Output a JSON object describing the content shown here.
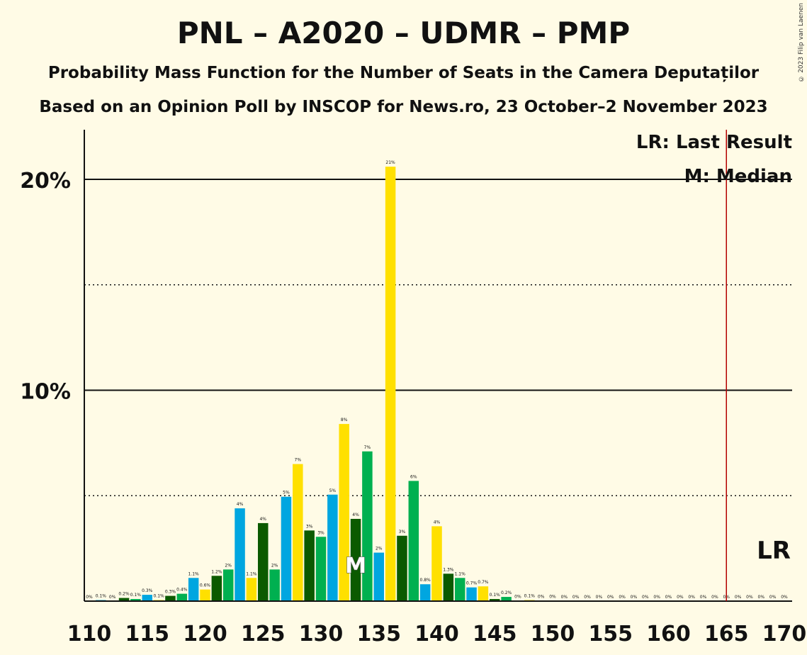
{
  "title": "PNL – A2020 – UDMR – PMP",
  "subtitle1": "Probability Mass Function for the Number of Seats in the Camera Deputaților",
  "subtitle2": "Based on an Opinion Poll by INSCOP for News.ro, 23 October–2 November 2023",
  "copyright": "© 2023 Filip van Laenen",
  "legend": {
    "last_result": "LR: Last Result",
    "median": "M: Median"
  },
  "lr_label": "LR",
  "median_label": "M",
  "colors": {
    "background": "#FFFBE6",
    "palette": [
      "#00B050",
      "#00A6E0",
      "#FFE000",
      "#0B5A00"
    ],
    "last_result_line": "#B30000"
  },
  "chart_data": {
    "type": "bar",
    "xlabel": "",
    "ylabel": "",
    "x_tick_labels": [
      "110",
      "115",
      "120",
      "125",
      "130",
      "135",
      "140",
      "145",
      "150",
      "155",
      "160",
      "165",
      "170"
    ],
    "y_tick_labels": [
      "10%",
      "20%"
    ],
    "ylim": [
      0,
      22.5
    ],
    "xlim": [
      110,
      170
    ],
    "solid_gridlines": [
      10,
      20
    ],
    "dotted_gridlines": [
      5,
      15
    ],
    "last_result": 165,
    "median": 133,
    "seats": [
      110,
      111,
      112,
      113,
      114,
      115,
      116,
      117,
      118,
      119,
      120,
      121,
      122,
      123,
      124,
      125,
      126,
      127,
      128,
      129,
      130,
      131,
      132,
      133,
      134,
      135,
      136,
      137,
      138,
      139,
      140,
      141,
      142,
      143,
      144,
      145,
      146,
      147,
      148,
      149,
      150,
      151,
      152,
      153,
      154,
      155,
      156,
      157,
      158,
      159,
      160,
      161,
      162,
      163,
      164,
      165,
      166,
      167,
      168,
      169,
      170
    ],
    "values": [
      0,
      0.05,
      0,
      0.15,
      0.1,
      0.3,
      0.05,
      0.25,
      0.35,
      1.1,
      0.55,
      1.2,
      1.5,
      4.4,
      1.1,
      3.7,
      1.5,
      4.95,
      6.5,
      3.35,
      3.05,
      5.05,
      8.4,
      3.9,
      7.1,
      2.3,
      20.6,
      3.1,
      5.7,
      0.8,
      3.55,
      1.3,
      1.1,
      0.65,
      0.7,
      0.1,
      0.2,
      0.02,
      0.05,
      0.02,
      0.01,
      0,
      0,
      0,
      0,
      0,
      0,
      0,
      0,
      0,
      0,
      0,
      0,
      0,
      0,
      0,
      0,
      0,
      0,
      0,
      0
    ],
    "labels": [
      "0%",
      "0.1%",
      "0%",
      "0.2%",
      "0.1%",
      "0.3%",
      "0.1%",
      "0.3%",
      "0.4%",
      "1.1%",
      "0.6%",
      "1.2%",
      "2%",
      "4%",
      "1.1%",
      "4%",
      "2%",
      "5%",
      "7%",
      "3%",
      "3%",
      "5%",
      "8%",
      "4%",
      "7%",
      "2%",
      "21%",
      "3%",
      "6%",
      "0.8%",
      "4%",
      "1.3%",
      "1.1%",
      "0.7%",
      "0.7%",
      "0.1%",
      "0.2%",
      "0%",
      "0.1%",
      "0%",
      "0%",
      "0%",
      "0%",
      "0%",
      "0%",
      "0%",
      "0%",
      "0%",
      "0%",
      "0%",
      "0%",
      "0%",
      "0%",
      "0%",
      "0%",
      "0%",
      "0%",
      "0%",
      "0%",
      "0%",
      "0%"
    ]
  }
}
